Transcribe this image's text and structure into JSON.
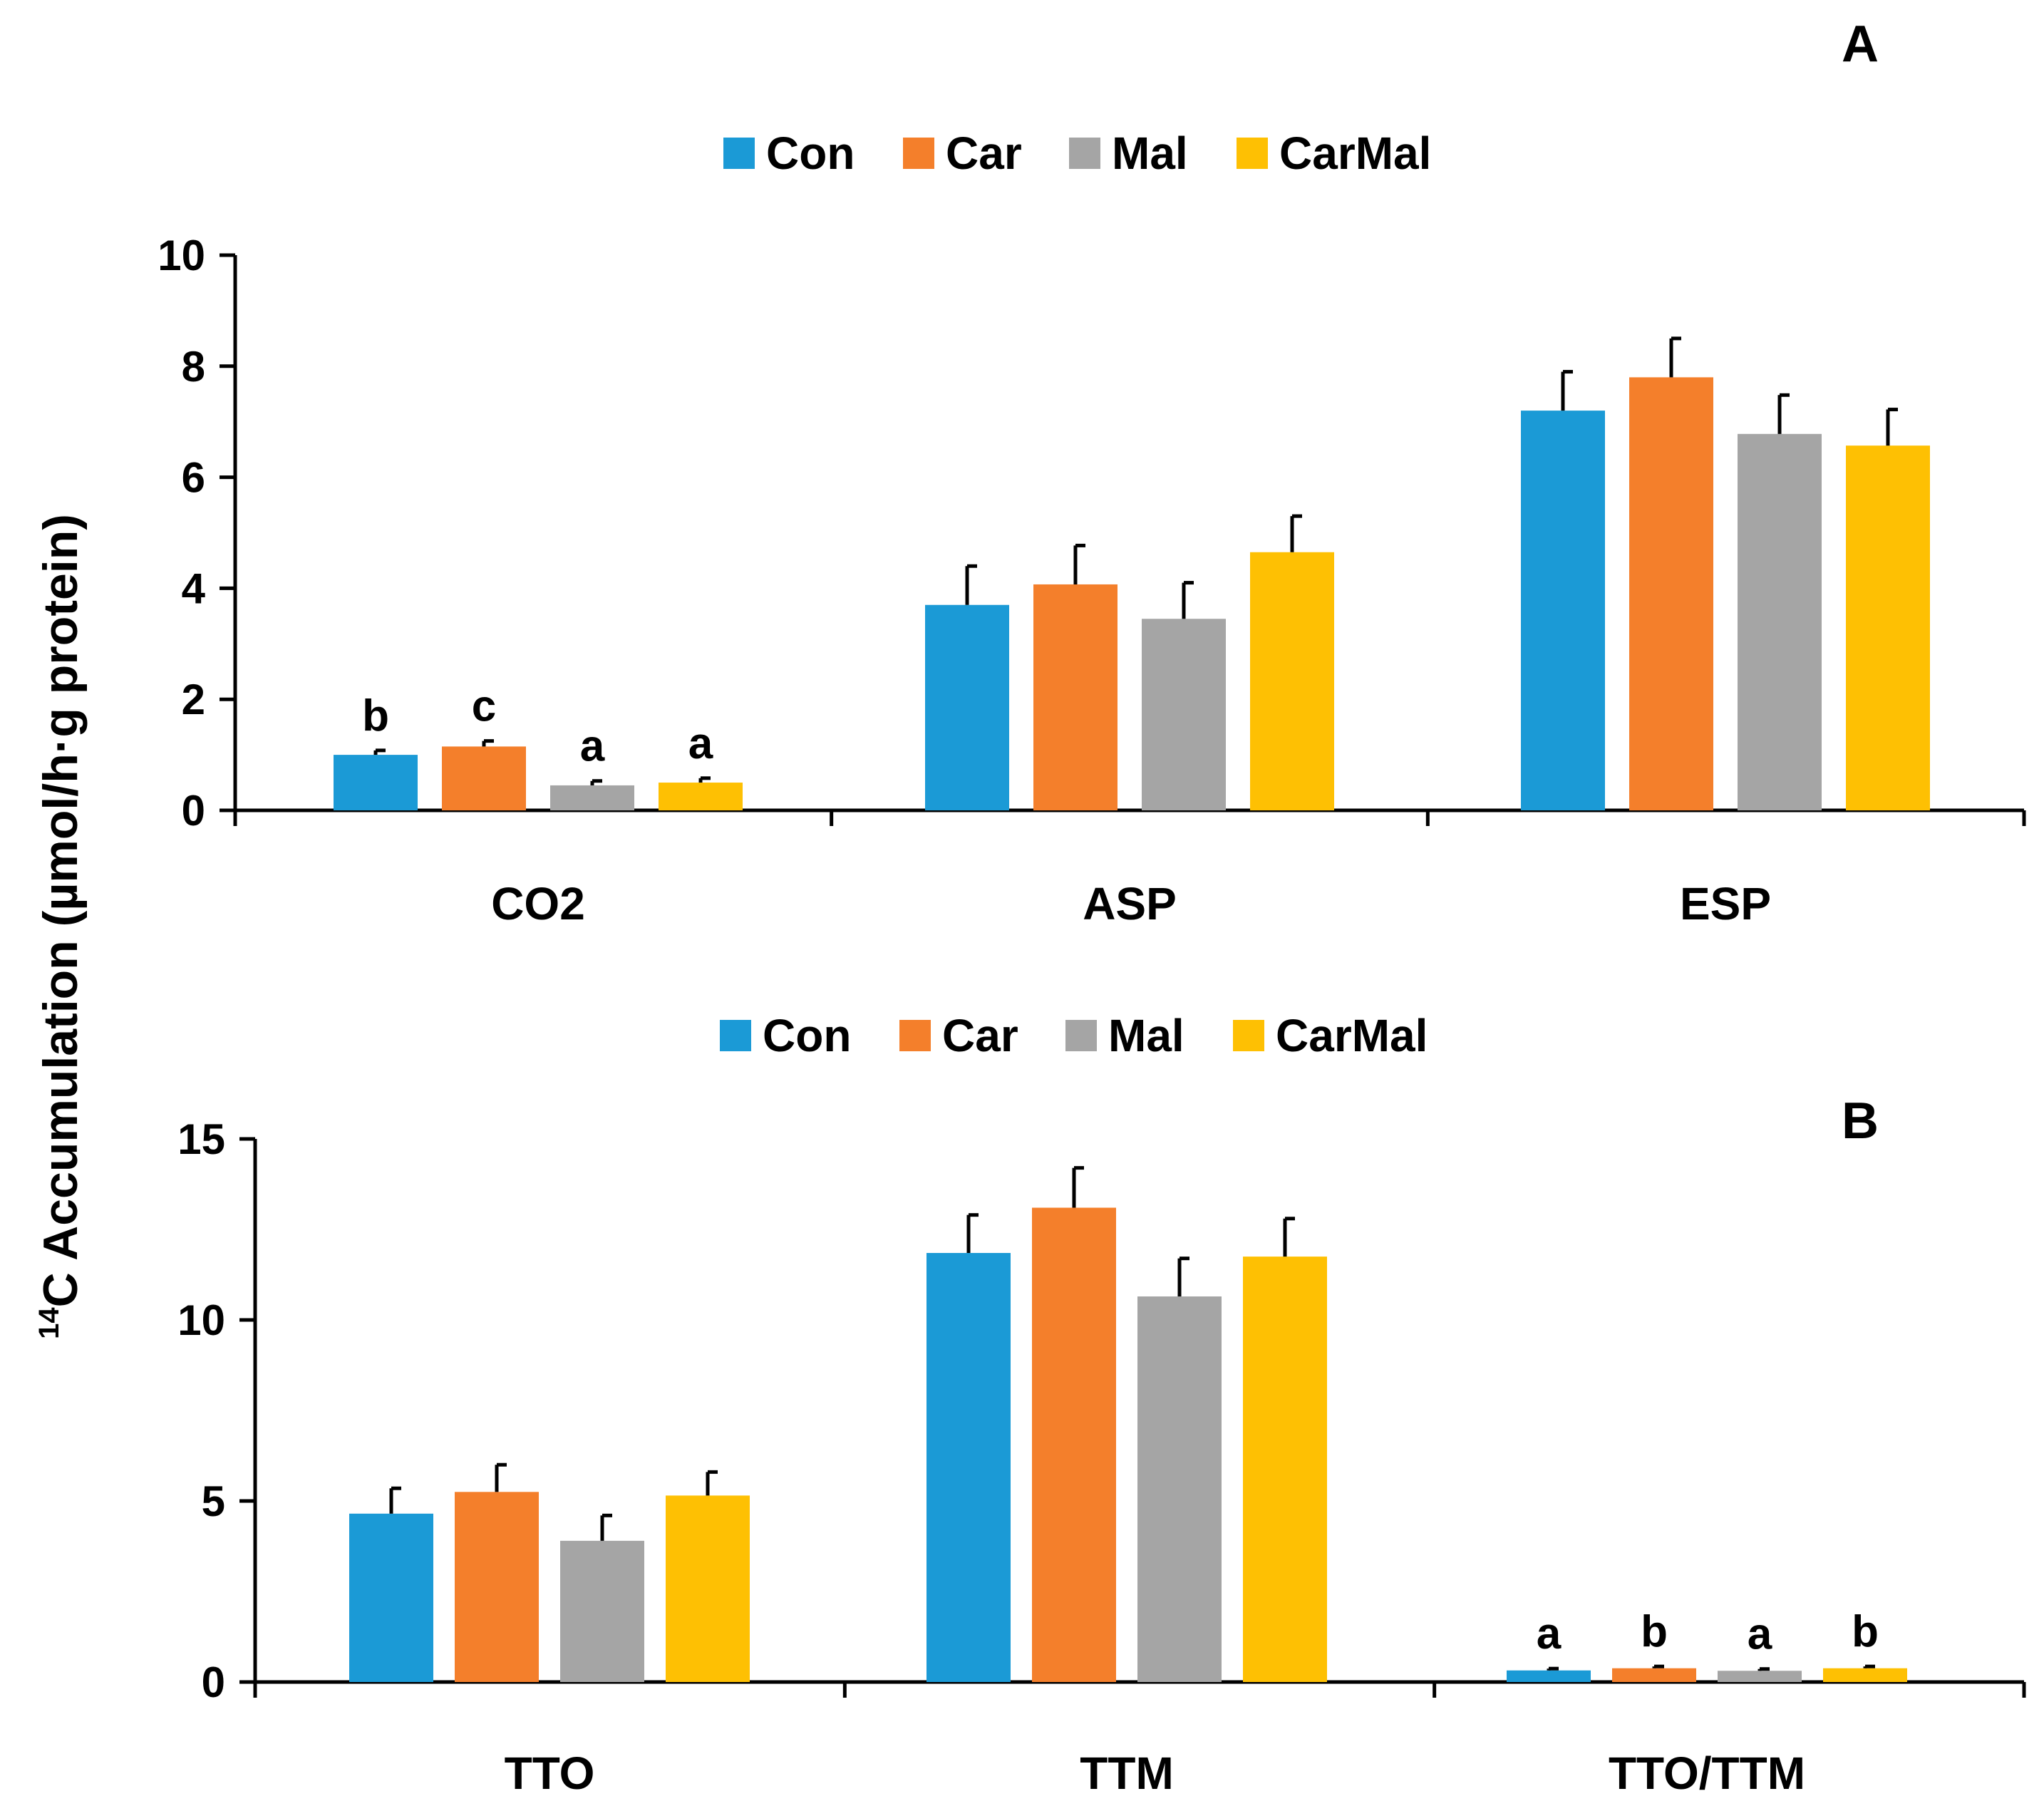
{
  "colors": {
    "Con": "#1b9ad6",
    "Car": "#f47f2b",
    "Mal": "#a5a5a5",
    "CarMal": "#fec003",
    "axis": "#000000"
  },
  "ylabel": {
    "superscript": "14",
    "text": "C Accumulation (µmol/h·g protein)"
  },
  "chart_data": [
    {
      "type": "bar",
      "panel": "A",
      "legend": [
        "Con",
        "Car",
        "Mal",
        "CarMal"
      ],
      "legend_position": "top-center",
      "categories": [
        "CO2",
        "ASP",
        "ESP"
      ],
      "ylim": [
        0,
        10
      ],
      "yticks": [
        0,
        2,
        4,
        6,
        8,
        10
      ],
      "ytick_labels": [
        "0",
        "2",
        "4",
        "6",
        "8",
        "10"
      ],
      "series": [
        {
          "name": "Con",
          "values": [
            1.0,
            3.7,
            7.2
          ],
          "errors": [
            0.08,
            0.7,
            0.7
          ],
          "letters": [
            "b",
            "",
            ""
          ]
        },
        {
          "name": "Car",
          "values": [
            1.15,
            4.07,
            7.8
          ],
          "errors": [
            0.1,
            0.7,
            0.7
          ],
          "letters": [
            "c",
            "",
            ""
          ]
        },
        {
          "name": "Mal",
          "values": [
            0.45,
            3.45,
            6.78
          ],
          "errors": [
            0.08,
            0.65,
            0.7
          ],
          "letters": [
            "a",
            "",
            ""
          ]
        },
        {
          "name": "CarMal",
          "values": [
            0.5,
            4.65,
            6.57
          ],
          "errors": [
            0.08,
            0.65,
            0.65
          ],
          "letters": [
            "a",
            "",
            ""
          ]
        }
      ]
    },
    {
      "type": "bar",
      "panel": "B",
      "legend": [
        "Con",
        "Car",
        "Mal",
        "CarMal"
      ],
      "legend_position": "top-center",
      "categories": [
        "TTO",
        "TTM",
        "TTO/TTM"
      ],
      "ylim": [
        0,
        15
      ],
      "yticks": [
        0,
        5,
        10,
        15
      ],
      "ytick_labels": [
        "0",
        "5",
        "10",
        "15"
      ],
      "series": [
        {
          "name": "Con",
          "values": [
            4.65,
            11.85,
            0.32
          ],
          "errors": [
            0.7,
            1.05,
            0.05
          ],
          "letters": [
            "",
            "",
            "a"
          ]
        },
        {
          "name": "Car",
          "values": [
            5.25,
            13.1,
            0.38
          ],
          "errors": [
            0.75,
            1.1,
            0.05
          ],
          "letters": [
            "",
            "",
            "b"
          ]
        },
        {
          "name": "Mal",
          "values": [
            3.9,
            10.65,
            0.31
          ],
          "errors": [
            0.7,
            1.05,
            0.05
          ],
          "letters": [
            "",
            "",
            "a"
          ]
        },
        {
          "name": "CarMal",
          "values": [
            5.15,
            11.75,
            0.38
          ],
          "errors": [
            0.65,
            1.05,
            0.05
          ],
          "letters": [
            "",
            "",
            "b"
          ]
        }
      ]
    }
  ]
}
